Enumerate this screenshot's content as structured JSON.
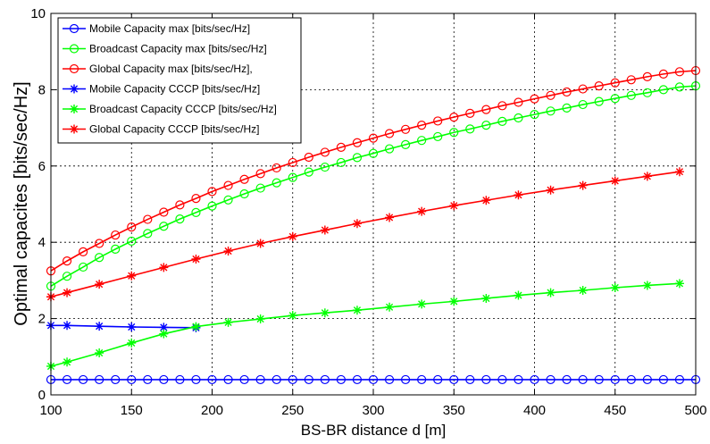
{
  "chart_data": {
    "type": "line",
    "title": "",
    "xlabel": "BS-BR distance d [m]",
    "ylabel": "Optimal capacites [bits/sec/Hz]",
    "xlim": [
      100,
      500
    ],
    "ylim": [
      0,
      10
    ],
    "xticks": [
      100,
      150,
      200,
      250,
      300,
      350,
      400,
      450,
      500
    ],
    "yticks": [
      0,
      2,
      4,
      6,
      8,
      10
    ],
    "grid": true,
    "legend_position": "top-left",
    "series": [
      {
        "name": "Mobile Capacity max [bits/sec/Hz]",
        "color": "#0000ff",
        "marker": "circle",
        "x": [
          100,
          110,
          120,
          130,
          140,
          150,
          160,
          170,
          180,
          190,
          200,
          210,
          220,
          230,
          240,
          250,
          260,
          270,
          280,
          290,
          300,
          310,
          320,
          330,
          340,
          350,
          360,
          370,
          380,
          390,
          400,
          410,
          420,
          430,
          440,
          450,
          460,
          470,
          480,
          490,
          500
        ],
        "y": [
          0.4,
          0.4,
          0.4,
          0.4,
          0.4,
          0.4,
          0.4,
          0.4,
          0.4,
          0.4,
          0.4,
          0.4,
          0.4,
          0.4,
          0.4,
          0.4,
          0.4,
          0.4,
          0.4,
          0.4,
          0.4,
          0.4,
          0.4,
          0.4,
          0.4,
          0.4,
          0.4,
          0.4,
          0.4,
          0.4,
          0.4,
          0.4,
          0.4,
          0.4,
          0.4,
          0.4,
          0.4,
          0.4,
          0.4,
          0.4,
          0.4
        ]
      },
      {
        "name": "Broadcast Capacity max [bits/sec/Hz]",
        "color": "#00ff00",
        "marker": "circle",
        "x": [
          100,
          110,
          120,
          130,
          140,
          150,
          160,
          170,
          180,
          190,
          200,
          210,
          220,
          230,
          240,
          250,
          260,
          270,
          280,
          290,
          300,
          310,
          320,
          330,
          340,
          350,
          360,
          370,
          380,
          390,
          400,
          410,
          420,
          430,
          440,
          450,
          460,
          470,
          480,
          490,
          500
        ],
        "y": [
          2.85,
          3.11,
          3.35,
          3.6,
          3.82,
          4.03,
          4.23,
          4.42,
          4.61,
          4.78,
          4.95,
          5.11,
          5.27,
          5.42,
          5.56,
          5.7,
          5.84,
          5.97,
          6.09,
          6.22,
          6.33,
          6.45,
          6.56,
          6.67,
          6.77,
          6.88,
          6.97,
          7.07,
          7.17,
          7.26,
          7.35,
          7.44,
          7.52,
          7.61,
          7.69,
          7.77,
          7.85,
          7.92,
          8.0,
          8.07,
          8.1
        ]
      },
      {
        "name": "Global Capacity max [bits/sec/Hz],",
        "color": "#ff0000",
        "marker": "circle",
        "x": [
          100,
          110,
          120,
          130,
          140,
          150,
          160,
          170,
          180,
          190,
          200,
          210,
          220,
          230,
          240,
          250,
          260,
          270,
          280,
          290,
          300,
          310,
          320,
          330,
          340,
          350,
          360,
          370,
          380,
          390,
          400,
          410,
          420,
          430,
          440,
          450,
          460,
          470,
          480,
          490,
          500
        ],
        "y": [
          3.25,
          3.51,
          3.75,
          3.97,
          4.19,
          4.4,
          4.6,
          4.79,
          4.98,
          5.15,
          5.33,
          5.49,
          5.65,
          5.8,
          5.95,
          6.09,
          6.23,
          6.36,
          6.49,
          6.61,
          6.73,
          6.85,
          6.96,
          7.07,
          7.18,
          7.28,
          7.38,
          7.48,
          7.58,
          7.67,
          7.76,
          7.85,
          7.94,
          8.02,
          8.1,
          8.18,
          8.26,
          8.34,
          8.41,
          8.47,
          8.5
        ]
      },
      {
        "name": "Mobile Capacity CCCP [bits/sec/Hz]",
        "color": "#0000ff",
        "marker": "star",
        "x": [
          100,
          110,
          130,
          150,
          170,
          190
        ],
        "y": [
          1.82,
          1.82,
          1.8,
          1.78,
          1.77,
          1.76
        ]
      },
      {
        "name": "Broadcast Capacity CCCP [bits/sec/Hz]",
        "color": "#00ff00",
        "marker": "star",
        "x": [
          100,
          110,
          130,
          150,
          170,
          190,
          210,
          230,
          250,
          270,
          290,
          310,
          330,
          350,
          370,
          390,
          410,
          430,
          450,
          470,
          490
        ],
        "y": [
          0.75,
          0.86,
          1.1,
          1.36,
          1.6,
          1.79,
          1.9,
          1.99,
          2.08,
          2.15,
          2.22,
          2.3,
          2.38,
          2.45,
          2.53,
          2.61,
          2.68,
          2.74,
          2.81,
          2.87,
          2.92
        ]
      },
      {
        "name": "Global Capacity CCCP [bits/sec/Hz]",
        "color": "#ff0000",
        "marker": "star",
        "x": [
          100,
          110,
          130,
          150,
          170,
          190,
          210,
          230,
          250,
          270,
          290,
          310,
          330,
          350,
          370,
          390,
          410,
          430,
          450,
          470,
          490
        ],
        "y": [
          2.57,
          2.68,
          2.9,
          3.12,
          3.34,
          3.56,
          3.77,
          3.97,
          4.15,
          4.32,
          4.49,
          4.65,
          4.81,
          4.96,
          5.1,
          5.24,
          5.37,
          5.49,
          5.61,
          5.73,
          5.85
        ]
      }
    ]
  }
}
